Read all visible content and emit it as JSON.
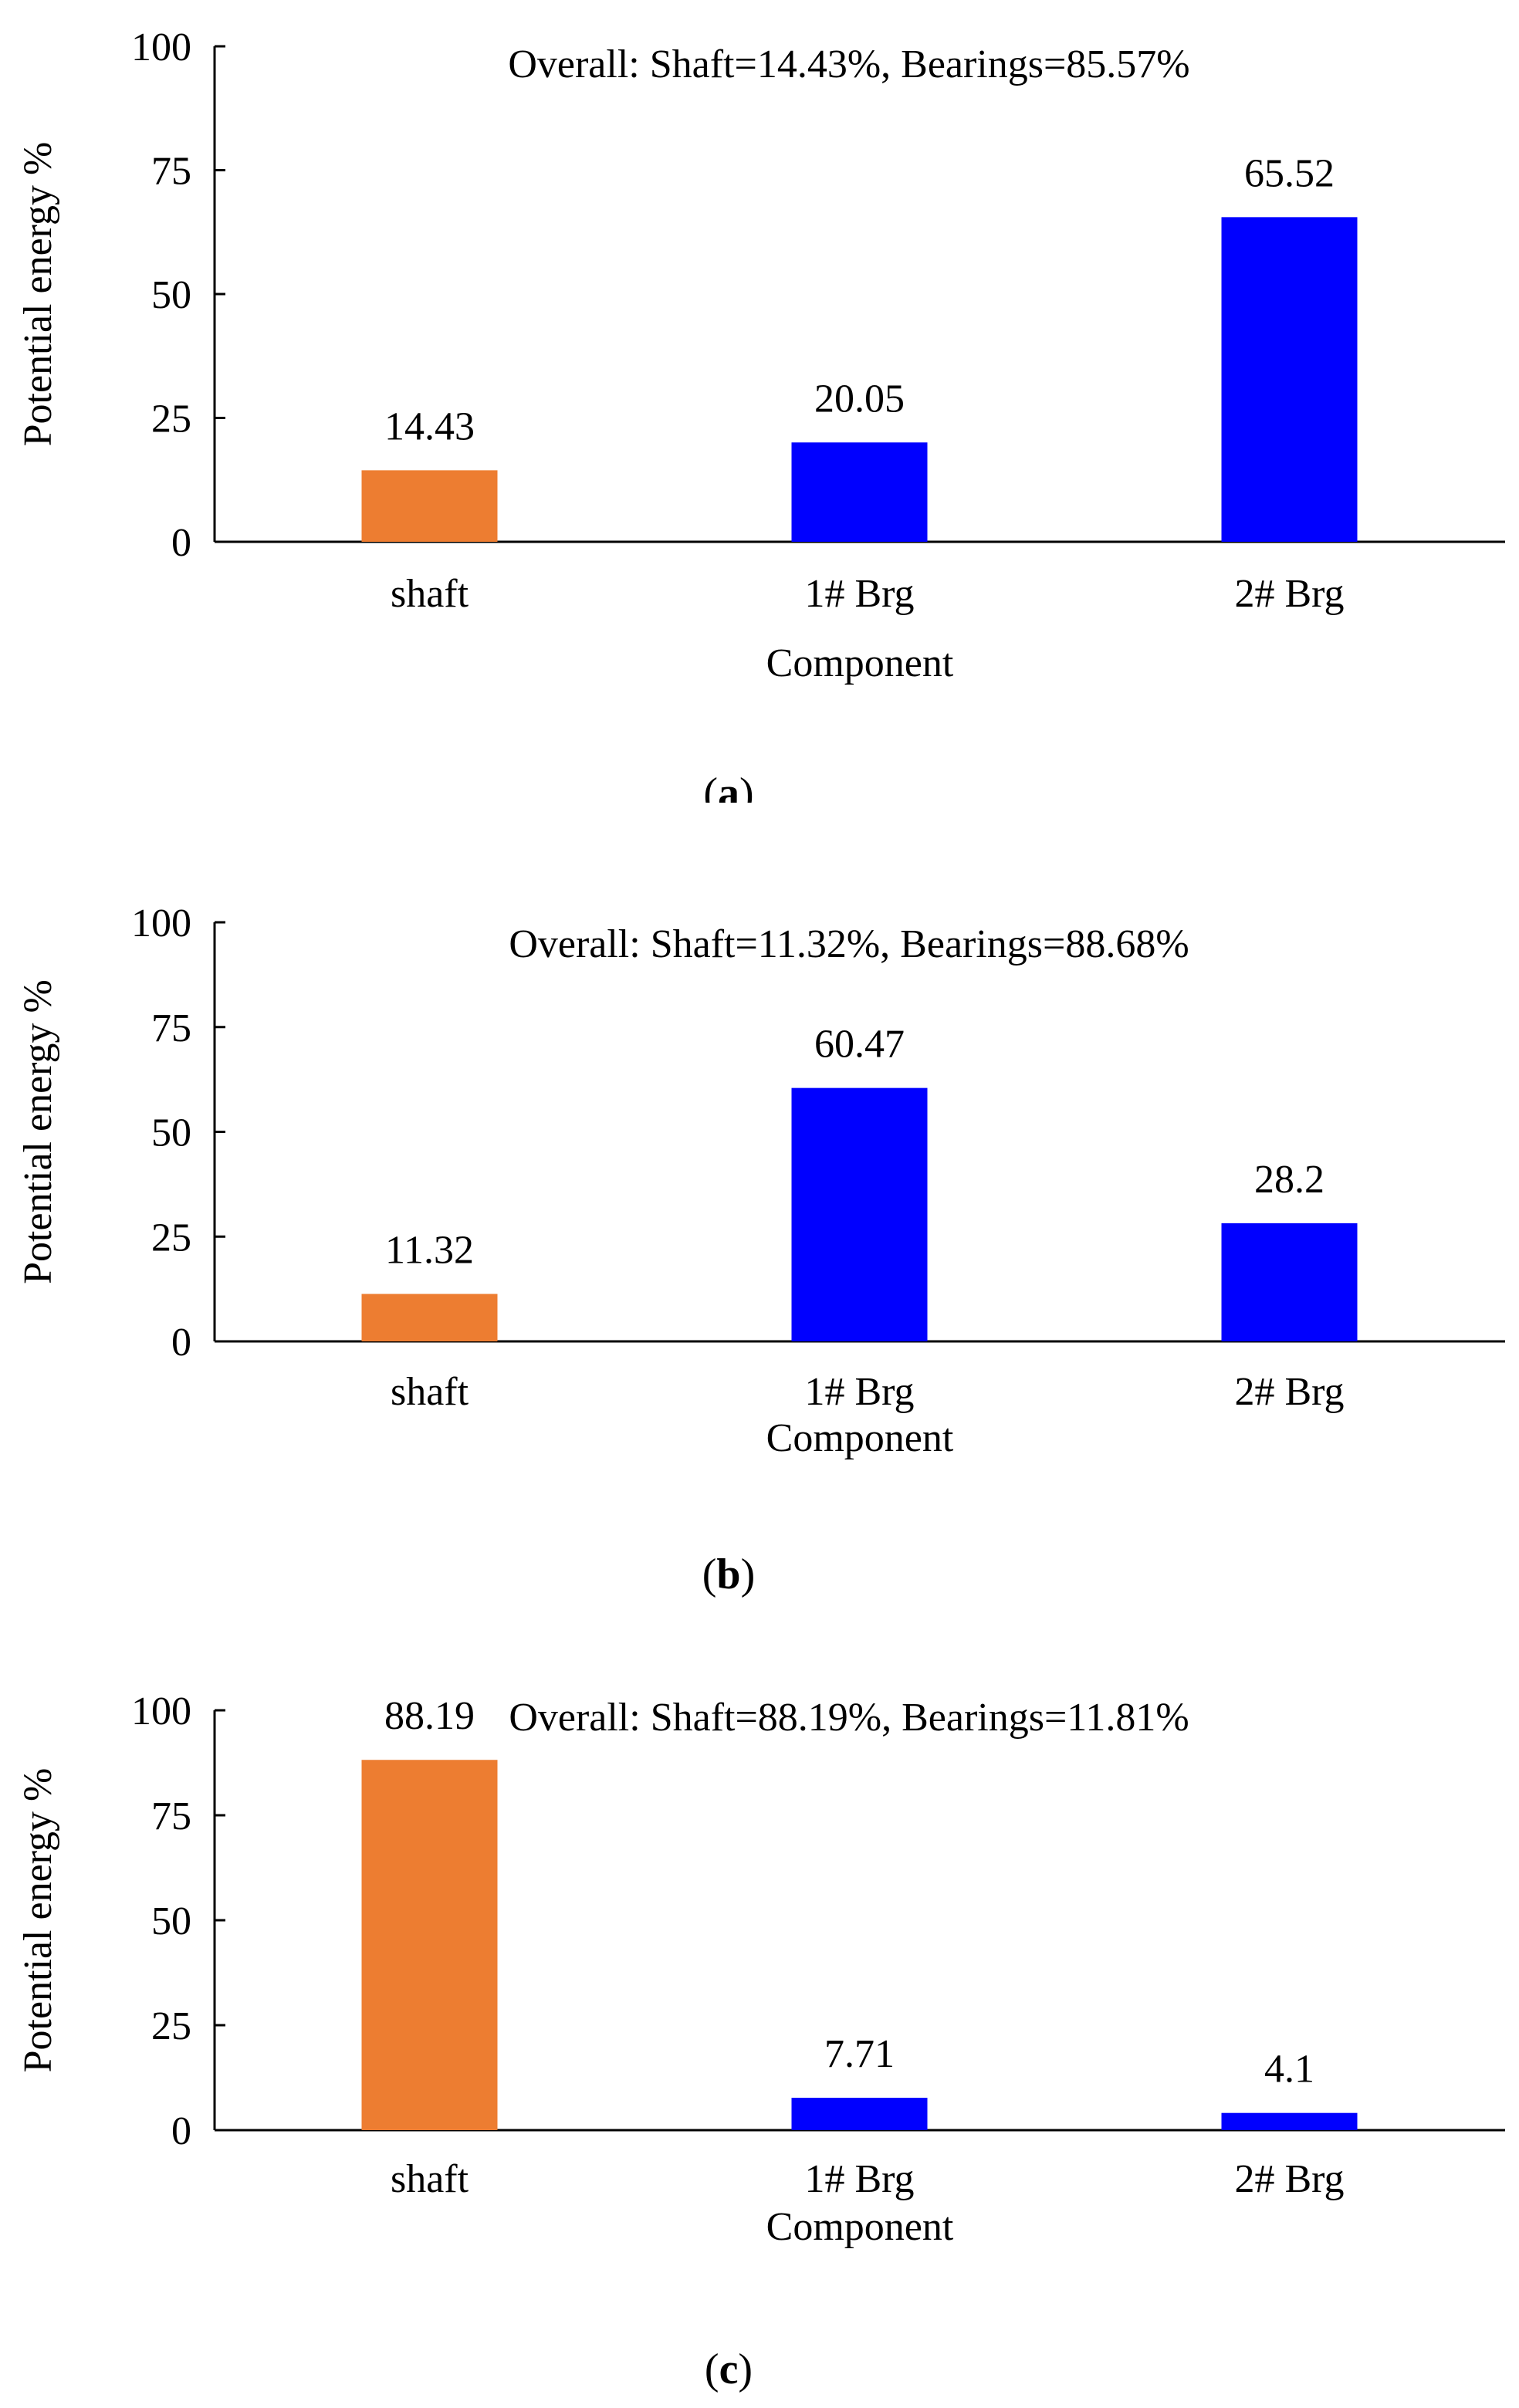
{
  "chart_data": [
    {
      "type": "bar",
      "panel": "a",
      "categories": [
        "shaft",
        "1# Brg",
        "2# Brg"
      ],
      "values": [
        14.43,
        20.05,
        65.52
      ],
      "data_labels": [
        "14.43",
        "20.05",
        "65.52"
      ],
      "colors": [
        "#ED7D31",
        "#0000FF",
        "#0000FF"
      ],
      "annotation": "Overall: Shaft=14.43%, Bearings=85.57%",
      "xlabel": "Component",
      "ylabel": "Potential energy %",
      "ylim": [
        0,
        100
      ],
      "yticks": [
        "0",
        "25",
        "50",
        "75",
        "100"
      ],
      "caption_open": "(",
      "caption_letter": "a",
      "caption_close": ")"
    },
    {
      "type": "bar",
      "panel": "b",
      "categories": [
        "shaft",
        "1# Brg",
        "2# Brg"
      ],
      "values": [
        11.32,
        60.47,
        28.2
      ],
      "data_labels": [
        "11.32",
        "60.47",
        "28.2"
      ],
      "colors": [
        "#ED7D31",
        "#0000FF",
        "#0000FF"
      ],
      "annotation": "Overall: Shaft=11.32%, Bearings=88.68%",
      "xlabel": "Component",
      "ylabel": "Potential energy %",
      "ylim": [
        0,
        100
      ],
      "yticks": [
        "0",
        "25",
        "50",
        "75",
        "100"
      ],
      "caption_open": "(",
      "caption_letter": "b",
      "caption_close": ")"
    },
    {
      "type": "bar",
      "panel": "c",
      "categories": [
        "shaft",
        "1# Brg",
        "2# Brg"
      ],
      "values": [
        88.19,
        7.71,
        4.1
      ],
      "data_labels": [
        "88.19",
        "7.71",
        "4.1"
      ],
      "colors": [
        "#ED7D31",
        "#0000FF",
        "#0000FF"
      ],
      "annotation": "Overall: Shaft=88.19%, Bearings=11.81%",
      "xlabel": "Component",
      "ylabel": "Potential energy %",
      "ylim": [
        0,
        100
      ],
      "yticks": [
        "0",
        "25",
        "50",
        "75",
        "100"
      ],
      "caption_open": "(",
      "caption_letter": "c",
      "caption_close": ")"
    }
  ]
}
